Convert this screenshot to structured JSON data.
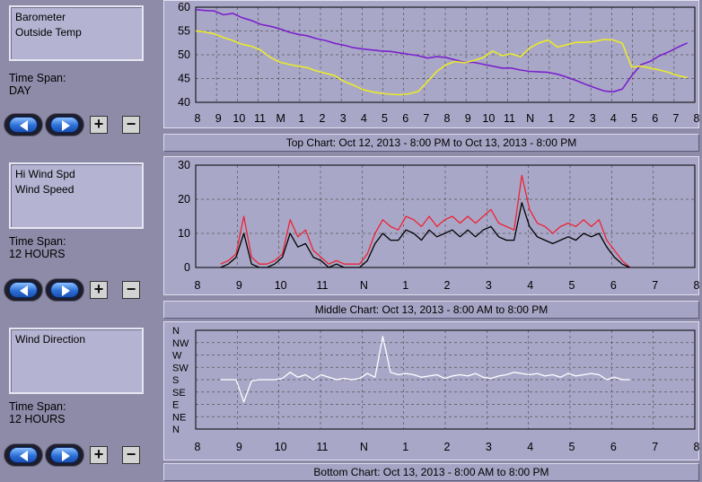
{
  "panels": [
    {
      "legend": [
        "Barometer",
        "Outside Temp"
      ],
      "time_span_label": "Time Span:",
      "time_span_value": "DAY",
      "caption": "Top Chart:  Oct 12, 2013 - 8:00 PM  to  Oct 13, 2013 - 8:00 PM"
    },
    {
      "legend": [
        "Hi Wind Spd",
        "Wind Speed"
      ],
      "time_span_label": "Time Span:",
      "time_span_value": "12 HOURS",
      "caption": "Middle Chart:  Oct 13, 2013 - 8:00 AM  to  8:00 PM"
    },
    {
      "legend": [
        "Wind Direction"
      ],
      "time_span_label": "Time Span:",
      "time_span_value": "12 HOURS",
      "caption": "Bottom Chart:  Oct 13, 2013 - 8:00 AM  to  8:00 PM"
    }
  ],
  "buttons": {
    "zoom_in": "+",
    "zoom_out": "−",
    "prev_icon": "left-arrow-icon",
    "next_icon": "right-arrow-icon"
  },
  "colors": {
    "background": "#8d8ba8",
    "plot_bg": "#a9a7c8",
    "barometer": "#7a22cc",
    "temperature": "#eaea2a",
    "hi_wind": "#ee2233",
    "wind": "#000000",
    "wind_dir": "#ffffff"
  },
  "chart_data": [
    {
      "type": "line",
      "x_ticks": [
        "8",
        "9",
        "10",
        "11",
        "M",
        "1",
        "2",
        "3",
        "4",
        "5",
        "6",
        "7",
        "8",
        "9",
        "10",
        "11",
        "N",
        "1",
        "2",
        "3",
        "4",
        "5",
        "6",
        "7",
        "8"
      ],
      "y_ticks": [
        40,
        45,
        50,
        55,
        60
      ],
      "ylim": [
        40,
        60
      ],
      "series": [
        {
          "name": "Barometer",
          "color": "#7a22cc",
          "values": [
            59.5,
            59.3,
            59.2,
            58.4,
            58.7,
            57.8,
            57.2,
            56.4,
            56.0,
            55.5,
            54.8,
            54.3,
            54.0,
            53.4,
            53.0,
            52.4,
            52.0,
            51.5,
            51.2,
            51.0,
            50.8,
            50.7,
            50.4,
            50.1,
            49.8,
            49.3,
            49.6,
            49.4,
            48.9,
            48.4,
            48.4,
            48.0,
            47.6,
            47.2,
            47.2,
            46.8,
            46.5,
            46.4,
            46.3,
            45.9,
            45.3,
            44.6,
            43.8,
            43.1,
            42.4,
            42.2,
            42.8,
            45.6,
            47.9,
            48.6,
            49.8,
            50.6,
            51.6,
            52.5
          ]
        },
        {
          "name": "Outside Temp",
          "color": "#eaea2a",
          "values": [
            55.0,
            54.8,
            54.4,
            53.6,
            53.0,
            52.2,
            51.8,
            51.0,
            49.5,
            48.5,
            48.0,
            47.6,
            47.3,
            46.6,
            46.1,
            45.6,
            44.4,
            43.6,
            42.7,
            42.2,
            41.9,
            41.7,
            41.6,
            41.8,
            42.3,
            44.4,
            46.5,
            47.9,
            48.6,
            48.3,
            48.8,
            49.4,
            50.8,
            49.8,
            50.2,
            49.6,
            51.4,
            52.5,
            53.1,
            51.6,
            52.1,
            52.6,
            52.6,
            52.8,
            53.2,
            53.1,
            52.4,
            47.4,
            47.6,
            47.2,
            46.8,
            46.3,
            45.6,
            45.2
          ]
        }
      ]
    },
    {
      "type": "line",
      "x_ticks": [
        "8",
        "9",
        "10",
        "11",
        "N",
        "1",
        "2",
        "3",
        "4",
        "5",
        "6",
        "7",
        "8"
      ],
      "y_ticks": [
        0,
        10,
        20,
        30
      ],
      "ylim": [
        0,
        30
      ],
      "series": [
        {
          "name": "Hi Wind Spd",
          "color": "#ee2233",
          "values": [
            1,
            2,
            4,
            15,
            3,
            1,
            1,
            2,
            4,
            14,
            9,
            11,
            5,
            3,
            1,
            2,
            1,
            1,
            1,
            4,
            10,
            14,
            12,
            11,
            15,
            14,
            12,
            15,
            12,
            14,
            15,
            13,
            15,
            13,
            15,
            17,
            13,
            12,
            11,
            27,
            17,
            13,
            12,
            10,
            12,
            13,
            12,
            14,
            12,
            14,
            8,
            5,
            2,
            0
          ]
        },
        {
          "name": "Wind Speed",
          "color": "#000000",
          "values": [
            0,
            1,
            3,
            10,
            1,
            0,
            0,
            1,
            3,
            10,
            6,
            7,
            3,
            2,
            0,
            1,
            0,
            0,
            0,
            2,
            7,
            10,
            8,
            8,
            11,
            10,
            8,
            11,
            9,
            10,
            11,
            9,
            11,
            9,
            11,
            12,
            9,
            8,
            8,
            19,
            12,
            9,
            8,
            7,
            8,
            9,
            8,
            10,
            9,
            10,
            6,
            3,
            1,
            0
          ]
        }
      ]
    },
    {
      "type": "line",
      "x_ticks": [
        "8",
        "9",
        "10",
        "11",
        "N",
        "1",
        "2",
        "3",
        "4",
        "5",
        "6",
        "7",
        "8"
      ],
      "y_ticks": [
        "N",
        "NW",
        "W",
        "SW",
        "S",
        "SE",
        "E",
        "NE",
        "N"
      ],
      "series": [
        {
          "name": "Wind Direction",
          "color": "#ffffff",
          "values": [
            4.0,
            4.0,
            4.0,
            5.8,
            4.1,
            4.0,
            4.0,
            4.0,
            3.9,
            3.4,
            3.8,
            3.6,
            4.0,
            3.6,
            3.8,
            4.0,
            3.9,
            4.0,
            3.9,
            3.5,
            3.8,
            0.5,
            3.4,
            3.6,
            3.5,
            3.6,
            3.8,
            3.7,
            3.6,
            3.9,
            3.7,
            3.6,
            3.7,
            3.5,
            3.8,
            3.9,
            3.7,
            3.6,
            3.4,
            3.5,
            3.6,
            3.5,
            3.7,
            3.6,
            3.8,
            3.5,
            3.7,
            3.6,
            3.5,
            3.6,
            4.0,
            3.8,
            4.0,
            4.0
          ]
        }
      ]
    }
  ]
}
